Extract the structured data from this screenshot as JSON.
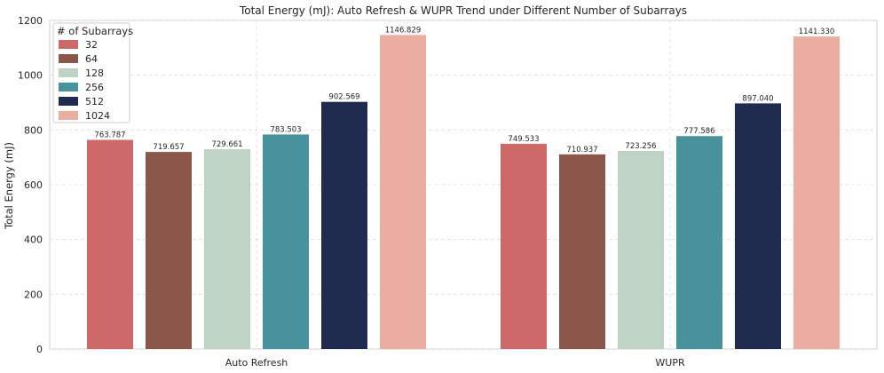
{
  "chart_data": {
    "type": "bar",
    "title": "Total Energy (mJ): Auto Refresh & WUPR Trend under Different Number of Subarrays",
    "xlabel": "",
    "ylabel": "Total Energy (mJ)",
    "ylim": [
      0,
      1200
    ],
    "yticks": [
      0,
      200,
      400,
      600,
      800,
      1000,
      1200
    ],
    "grid": true,
    "legend_title": "# of Subarrays",
    "legend_position": "top-left",
    "categories": [
      "Auto Refresh",
      "WUPR"
    ],
    "series": [
      {
        "name": "32",
        "color": "#cd6a69",
        "values": [
          763.787,
          749.533
        ],
        "labels": [
          "763.787",
          "749.533"
        ]
      },
      {
        "name": "64",
        "color": "#8b574b",
        "values": [
          719.657,
          710.937
        ],
        "labels": [
          "719.657",
          "710.937"
        ]
      },
      {
        "name": "128",
        "color": "#bed3c3",
        "values": [
          729.661,
          723.256
        ],
        "labels": [
          "729.661",
          "723.256"
        ]
      },
      {
        "name": "256",
        "color": "#48929c",
        "values": [
          783.503,
          777.586
        ],
        "labels": [
          "783.503",
          "777.586"
        ]
      },
      {
        "name": "512",
        "color": "#1f2c50",
        "values": [
          902.569,
          897.04
        ],
        "labels": [
          "902.569",
          "897.040"
        ]
      },
      {
        "name": "1024",
        "color": "#eaaea1",
        "values": [
          1146.829,
          1141.33
        ],
        "labels": [
          "1146.829",
          "1141.330"
        ]
      }
    ]
  }
}
